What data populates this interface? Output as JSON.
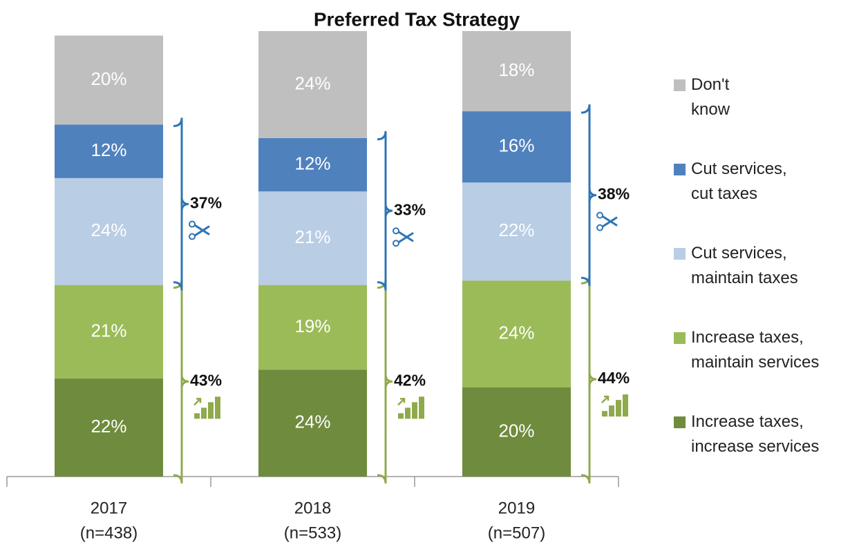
{
  "chart_data": {
    "type": "bar",
    "stacked": true,
    "title": "Preferred Tax Strategy",
    "categories": [
      "2017",
      "2018",
      "2019"
    ],
    "sample_sizes": [
      "(n=438)",
      "(n=533)",
      "(n=507)"
    ],
    "ylim": [
      0,
      100
    ],
    "series": [
      {
        "name": "Increase taxes,\nincrease services",
        "color": "#6f8b3d",
        "values": [
          22,
          24,
          20
        ],
        "value_labels": [
          "22%",
          "24%",
          "20%"
        ]
      },
      {
        "name": "Increase taxes,\nmaintain services",
        "color": "#9bbb59",
        "values": [
          21,
          19,
          24
        ],
        "value_labels": [
          "21%",
          "19%",
          "24%"
        ]
      },
      {
        "name": "Cut services,\nmaintain taxes",
        "color": "#b9cde5",
        "values": [
          24,
          21,
          22
        ],
        "value_labels": [
          "24%",
          "21%",
          "22%"
        ]
      },
      {
        "name": "Cut services,\ncut taxes",
        "color": "#4f81bd",
        "values": [
          12,
          12,
          16
        ],
        "value_labels": [
          "12%",
          "12%",
          "16%"
        ]
      },
      {
        "name": "Don't\nknow",
        "color": "#bfbfbf",
        "values": [
          20,
          24,
          18
        ],
        "value_labels": [
          "20%",
          "24%",
          "18%"
        ]
      }
    ],
    "cut_totals": {
      "color": "#2e75b6",
      "values": [
        37,
        33,
        38
      ],
      "value_labels": [
        "37%",
        "33%",
        "38%"
      ]
    },
    "increase_totals": {
      "color": "#8faa4c",
      "values": [
        43,
        42,
        44
      ],
      "value_labels": [
        "43%",
        "42%",
        "44%"
      ]
    }
  }
}
